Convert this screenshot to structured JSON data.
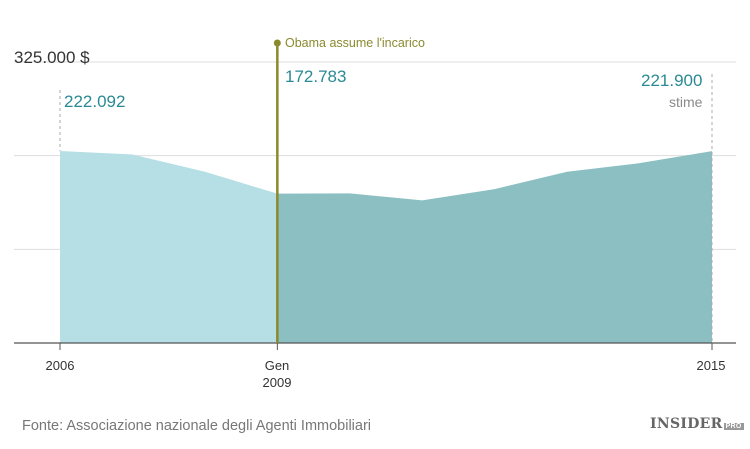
{
  "chart_data": {
    "type": "area",
    "y_axis_label_top": "325.000 $",
    "ylim": [
      0,
      325000
    ],
    "x_ticks": [
      {
        "x": 2006,
        "line1": "2006",
        "line2": ""
      },
      {
        "x": 2009,
        "line1": "Gen",
        "line2": "2009"
      },
      {
        "x": 2015,
        "line1": "2015",
        "line2": ""
      }
    ],
    "series": [
      {
        "values_x": [
          2006,
          2007,
          2008,
          2009
        ],
        "values_y": [
          222092,
          218000,
          198000,
          172783
        ],
        "color": "#b5dfe5"
      },
      {
        "values_x": [
          2009,
          2010,
          2011,
          2012,
          2013,
          2014,
          2015
        ],
        "values_y": [
          172783,
          173000,
          165000,
          178000,
          198000,
          208000,
          221900
        ],
        "color": "#8bbfc2"
      }
    ],
    "data_labels": [
      {
        "text": "222.092",
        "note": ""
      },
      {
        "text": "172.783",
        "note": ""
      },
      {
        "text": "221.900",
        "note": "stime"
      }
    ],
    "annotation": {
      "text": "Obama assume l'incarico",
      "x": 2009,
      "color": "#8a8a2a"
    },
    "gridlines": [
      108333,
      216667,
      325000
    ],
    "grid": true
  },
  "source": "Fonte: Associazione nazionale degli Agenti Immobiliari",
  "brand": {
    "name": "INSIDER",
    "suffix": "PRO"
  }
}
